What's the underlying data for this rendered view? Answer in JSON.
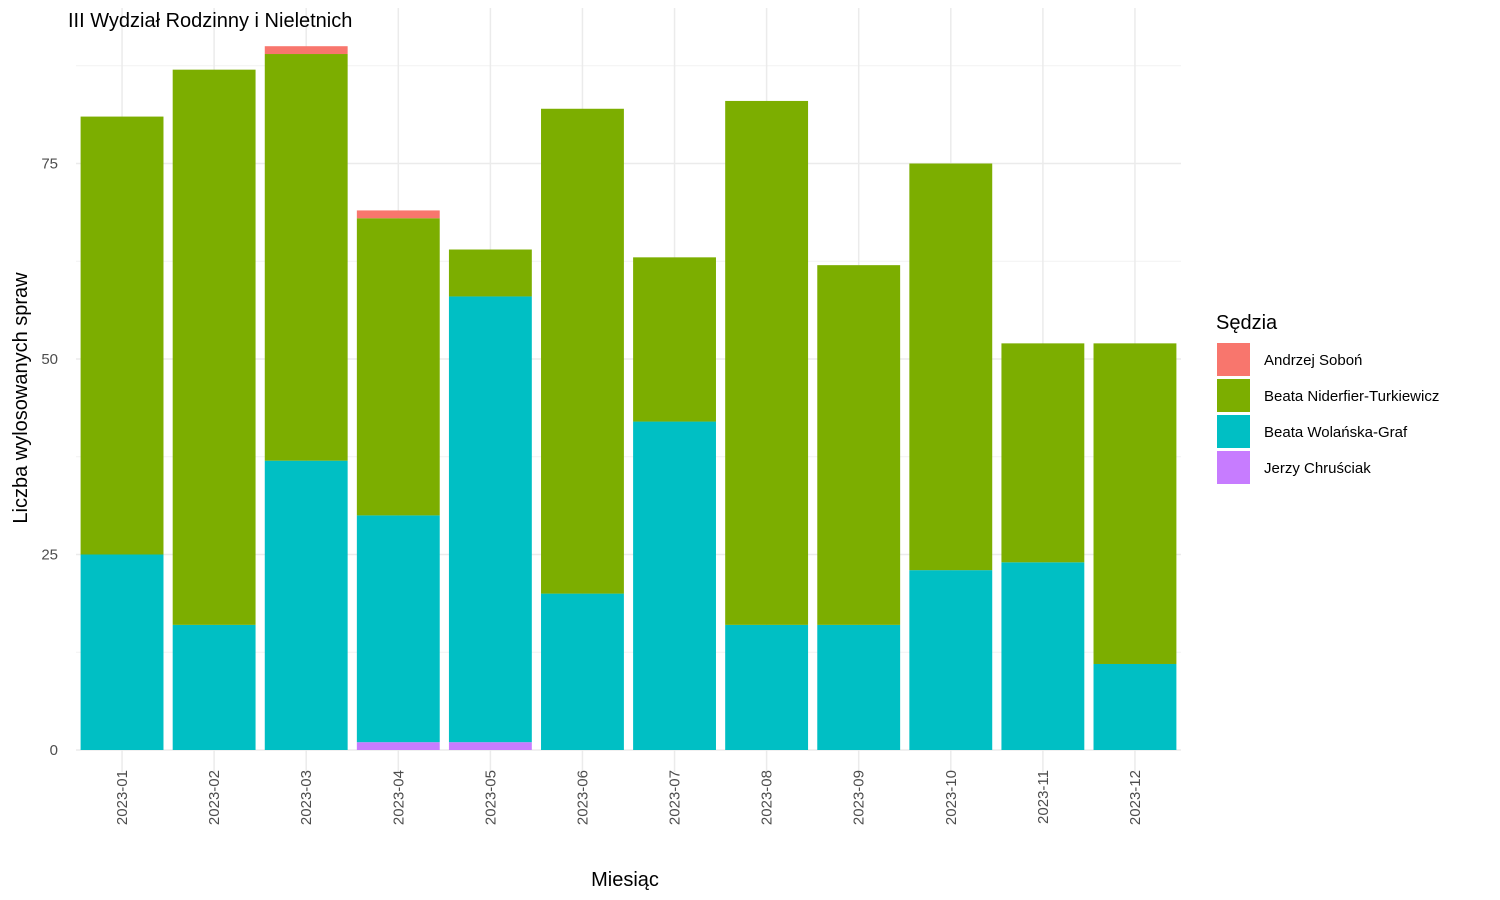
{
  "chart_data": {
    "type": "bar",
    "stacked": true,
    "title": "III Wydział Rodzinny i Nieletnich",
    "xlabel": "Miesiąc",
    "ylabel": "Liczba wylosowanych spraw",
    "ylim": [
      0,
      90
    ],
    "yticks": [
      0,
      25,
      50,
      75
    ],
    "grid": true,
    "legend_position": "right",
    "legend_title": "Sędzia",
    "categories": [
      "2023-01",
      "2023-02",
      "2023-03",
      "2023-04",
      "2023-05",
      "2023-06",
      "2023-07",
      "2023-08",
      "2023-09",
      "2023-10",
      "2023-11",
      "2023-12"
    ],
    "series": [
      {
        "name": "Andrzej Soboń",
        "color": "#F8766D",
        "values": [
          0,
          0,
          1,
          1,
          0,
          0,
          0,
          0,
          0,
          0,
          0,
          0
        ]
      },
      {
        "name": "Beata Niderfier-Turkiewicz",
        "color": "#7CAE00",
        "values": [
          56,
          71,
          52,
          38,
          6,
          62,
          21,
          67,
          46,
          52,
          28,
          41
        ]
      },
      {
        "name": "Beata Wolańska-Graf",
        "color": "#00BFC4",
        "values": [
          25,
          16,
          37,
          29,
          57,
          20,
          42,
          16,
          16,
          23,
          24,
          11
        ]
      },
      {
        "name": "Jerzy Chruściak",
        "color": "#C77CFF",
        "values": [
          0,
          0,
          0,
          1,
          1,
          0,
          0,
          0,
          0,
          0,
          0,
          0
        ]
      }
    ],
    "stack_order_bottom_to_top": [
      "Jerzy Chruściak",
      "Beata Wolańska-Graf",
      "Beata Niderfier-Turkiewicz",
      "Andrzej Soboń"
    ]
  }
}
